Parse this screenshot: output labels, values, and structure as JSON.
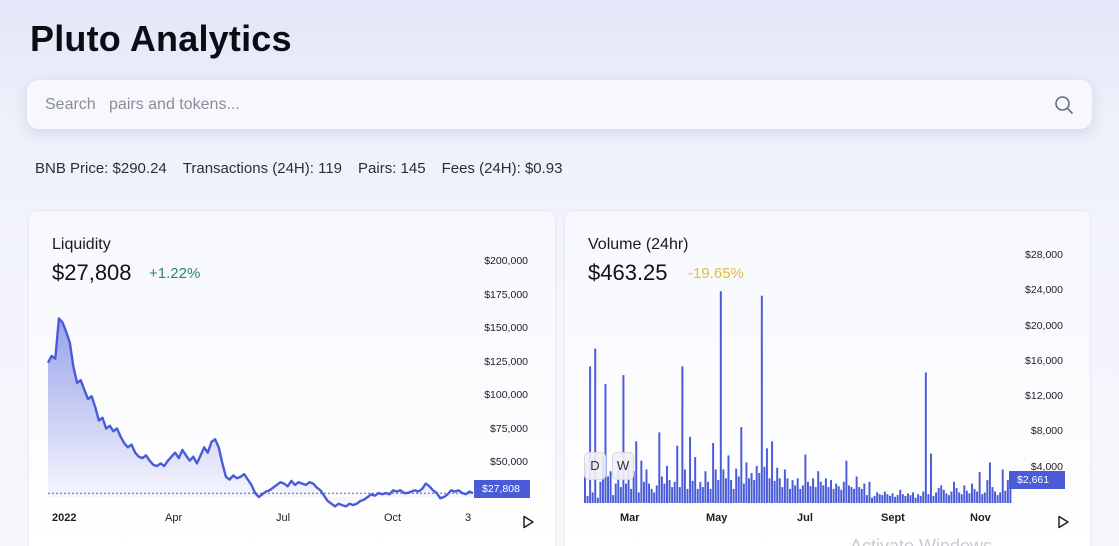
{
  "app": {
    "title": "Pluto Analytics"
  },
  "search": {
    "placeholder": "Search   pairs and tokens..."
  },
  "stats": [
    {
      "label": "BNB Price:",
      "value": "$290.24"
    },
    {
      "label": "Transactions (24H):",
      "value": "119"
    },
    {
      "label": "Pairs:",
      "value": "145"
    },
    {
      "label": "Fees (24H):",
      "value": "$0.93"
    }
  ],
  "watermark": "Activate Windows",
  "liquidity": {
    "label": "Liquidity",
    "value": "$27,808",
    "change": "+1.22%",
    "price_tag": "$27,808",
    "color": "#4a5bd8"
  },
  "volume": {
    "label": "Volume (24hr)",
    "value": "$463.25",
    "change": "-19.65%",
    "price_tag": "$2,661",
    "toggle_day": "D",
    "toggle_week": "W",
    "color": "#4a5bd8"
  },
  "chart_data": [
    {
      "type": "area",
      "x_ticks": [
        "2022",
        "Apr",
        "Jul",
        "Oct",
        "3"
      ],
      "y_ticks": [
        "$200,000",
        "$175,000",
        "$150,000",
        "$125,000",
        "$100,000",
        "$75,000",
        "$50,000",
        "$27,808"
      ],
      "ylim": [
        25000,
        200000
      ],
      "current_value": 27808,
      "series": [
        {
          "values": [
            125000,
            130000,
            128000,
            158000,
            155000,
            148000,
            140000,
            122000,
            110000,
            112000,
            105000,
            98000,
            100000,
            92000,
            82000,
            84000,
            76000,
            78000,
            74000,
            76000,
            70000,
            65000,
            62000,
            64000,
            58000,
            55000,
            54000,
            56000,
            52000,
            49000,
            48000,
            50000,
            48000,
            52000,
            55000,
            58000,
            54000,
            60000,
            56000,
            52000,
            55000,
            50000,
            56000,
            62000,
            58000,
            66000,
            68000,
            62000,
            50000,
            40000,
            38000,
            41000,
            39000,
            40000,
            42000,
            38000,
            34000,
            28000,
            25000,
            27000,
            29000,
            30000,
            32000,
            34000,
            36000,
            35000,
            33000,
            37000,
            34000,
            36000,
            35000,
            34000,
            36000,
            35000,
            32000,
            30000,
            26000,
            22000,
            20000,
            18000,
            20000,
            19000,
            18000,
            20000,
            19000,
            20000,
            22000,
            23000,
            25000,
            27000,
            26000,
            28000,
            27000,
            28000,
            27000,
            30000,
            29000,
            30000,
            28000,
            28000,
            29000,
            30000,
            29000,
            31000,
            35000,
            33000,
            30000,
            28000,
            24000,
            25000,
            27000,
            30000,
            29000,
            30000,
            28000,
            27000,
            29000,
            27800
          ]
        }
      ]
    },
    {
      "type": "bar",
      "x_ticks": [
        "Mar",
        "May",
        "Jul",
        "Sept",
        "Nov"
      ],
      "y_ticks": [
        "$28,000",
        "$24,000",
        "$20,000",
        "$16,000",
        "$12,000",
        "$8,000",
        "$4,000"
      ],
      "ylim": [
        0,
        28000
      ],
      "current_value": 2661,
      "series": [
        {
          "values": [
            4500,
            800,
            15500,
            1200,
            17500,
            600,
            2400,
            5200,
            13500,
            3000,
            3600,
            900,
            2200,
            4800,
            1800,
            14500,
            2200,
            5000,
            1600,
            3600,
            7000,
            1200,
            4800,
            2400,
            3800,
            2200,
            1600,
            1200,
            2000,
            8000,
            3000,
            2200,
            4200,
            2600,
            1800,
            2400,
            6500,
            1800,
            15500,
            3800,
            1600,
            7500,
            2500,
            5200,
            1600,
            2400,
            1800,
            3600,
            2400,
            1600,
            6800,
            3800,
            2600,
            24000,
            3800,
            2800,
            5400,
            2600,
            1600,
            3900,
            3000,
            8600,
            2200,
            4600,
            2800,
            3400,
            2600,
            4200,
            3400,
            23500,
            4100,
            6200,
            2800,
            7000,
            2500,
            4000,
            2800,
            1800,
            3800,
            2800,
            1600,
            2600,
            2000,
            2800,
            1600,
            2000,
            5500,
            2400,
            1900,
            2800,
            1800,
            3600,
            2400,
            2000,
            2800,
            1800,
            2600,
            1600,
            2200,
            1900,
            1500,
            2400,
            4800,
            2000,
            1800,
            1600,
            3000,
            1800,
            1600,
            2200,
            900,
            2400,
            600,
            800,
            1200,
            1000,
            900,
            1300,
            1000,
            800,
            1100,
            700,
            900,
            1500,
            1000,
            800,
            1100,
            900,
            1200,
            600,
            1000,
            800,
            1300,
            14800,
            1000,
            5600,
            800,
            1200,
            1700,
            2000,
            1500,
            1100,
            900,
            1300,
            2400,
            1700,
            1200,
            1000,
            2000,
            1400,
            1100,
            2200,
            1600,
            1300,
            3500,
            1000,
            1200,
            2600,
            4600,
            1800,
            1300,
            900,
            1200,
            3800,
            1400,
            2600,
            2661
          ]
        }
      ]
    }
  ]
}
